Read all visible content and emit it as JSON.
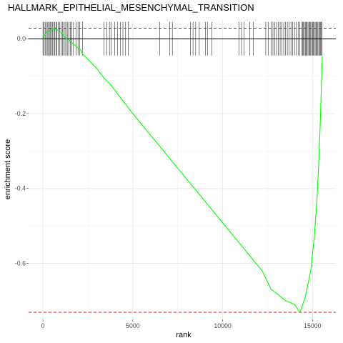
{
  "chart_data": {
    "type": "line",
    "title": "HALLMARK_EPITHELIAL_MESENCHYMAL_TRANSITION",
    "xlabel": "rank",
    "ylabel": "enrichment score",
    "xlim": [
      -800,
      16300
    ],
    "ylim": [
      -0.75,
      0.05
    ],
    "x_ticks": [
      0,
      5000,
      10000,
      15000
    ],
    "x_tick_labels": [
      "0",
      "5000",
      "10000",
      "15000"
    ],
    "y_ticks": [
      -0.6,
      -0.4,
      -0.2,
      0.0
    ],
    "y_tick_labels": [
      "-0.6",
      "-0.4",
      "-0.2",
      "0.0"
    ],
    "grid": true,
    "line_color": "#00ff00",
    "reference_lines": [
      {
        "y": 0.0,
        "style": "solid",
        "color": "#000000"
      },
      {
        "y": 0.028,
        "style": "dashed",
        "color": "#ff0000"
      },
      {
        "y": -0.731,
        "style": "dashed",
        "color": "#ff0000"
      }
    ],
    "series": [
      {
        "x": [
          0,
          150,
          300,
          450,
          600,
          750,
          900,
          1050,
          1200,
          1350,
          1500,
          1650,
          1800,
          1950,
          2100,
          2200,
          2600,
          3000,
          3400,
          3800,
          4200,
          4600,
          5000,
          5600,
          6200,
          6800,
          7400,
          8000,
          8600,
          9200,
          9800,
          10400,
          11000,
          11600,
          12200,
          12700,
          13000,
          13500,
          14000,
          14300,
          14600,
          14900,
          15100,
          15250,
          15350,
          15420,
          15480,
          15520,
          15550
        ],
        "y": [
          0.0,
          0.015,
          0.02,
          0.022,
          0.028,
          0.025,
          0.02,
          0.015,
          0.005,
          -0.002,
          -0.005,
          -0.012,
          -0.018,
          -0.025,
          -0.03,
          -0.04,
          -0.06,
          -0.08,
          -0.105,
          -0.125,
          -0.15,
          -0.175,
          -0.2,
          -0.235,
          -0.27,
          -0.305,
          -0.34,
          -0.375,
          -0.41,
          -0.445,
          -0.48,
          -0.515,
          -0.55,
          -0.585,
          -0.62,
          -0.67,
          -0.68,
          -0.7,
          -0.71,
          -0.731,
          -0.69,
          -0.62,
          -0.53,
          -0.43,
          -0.33,
          -0.24,
          -0.15,
          -0.08,
          -0.045
        ]
      }
    ],
    "gene_hits": [
      0,
      60,
      120,
      180,
      240,
      300,
      360,
      420,
      480,
      540,
      600,
      660,
      720,
      780,
      860,
      940,
      1000,
      1080,
      1150,
      1230,
      1300,
      1380,
      1450,
      1520,
      1600,
      1700,
      1850,
      1950,
      2050,
      2200,
      3400,
      3550,
      3700,
      3800,
      4000,
      4150,
      4300,
      4450,
      4600,
      4750,
      6500,
      7050,
      7200,
      8200,
      8350,
      8500,
      8700,
      9050,
      9150,
      9400,
      10900,
      11050,
      11200,
      11500,
      11700,
      12400,
      12550,
      12700,
      12800,
      12900,
      13000,
      13100,
      13200,
      13300,
      13400,
      13500,
      13600,
      13700,
      13800,
      13900,
      14000,
      14100,
      14200,
      14300,
      14400,
      14450,
      14500,
      14550,
      14600,
      14650,
      14700,
      14750,
      14800,
      14850,
      14900,
      14950,
      15000,
      15050,
      15100,
      15150,
      15200,
      15250,
      15300,
      15350,
      15400,
      15450,
      15500,
      15530
    ],
    "hit_ymin": -0.045,
    "hit_ymax": 0.045
  }
}
